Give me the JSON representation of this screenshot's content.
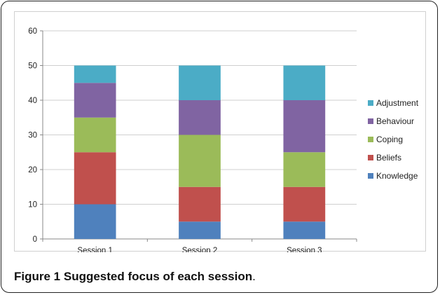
{
  "chart_data": {
    "type": "bar",
    "stacked": true,
    "categories": [
      "Session 1",
      "Session 2",
      "Session 3"
    ],
    "series": [
      {
        "name": "Knowledge",
        "color": "#4f81bd",
        "values": [
          10,
          5,
          5
        ]
      },
      {
        "name": "Beliefs",
        "color": "#c0504d",
        "values": [
          15,
          10,
          10
        ]
      },
      {
        "name": "Coping",
        "color": "#9bbb59",
        "values": [
          10,
          15,
          10
        ]
      },
      {
        "name": "Behaviour",
        "color": "#8064a2",
        "values": [
          10,
          10,
          15
        ]
      },
      {
        "name": "Adjustment",
        "color": "#4bacc6",
        "values": [
          5,
          10,
          10
        ]
      }
    ],
    "ylim": [
      0,
      60
    ],
    "yticks": [
      0,
      10,
      20,
      30,
      40,
      50,
      60
    ],
    "grid": true,
    "legend": "right"
  },
  "caption": {
    "label": "Figure 1",
    "text": "Suggested focus of each session",
    "end": "."
  }
}
